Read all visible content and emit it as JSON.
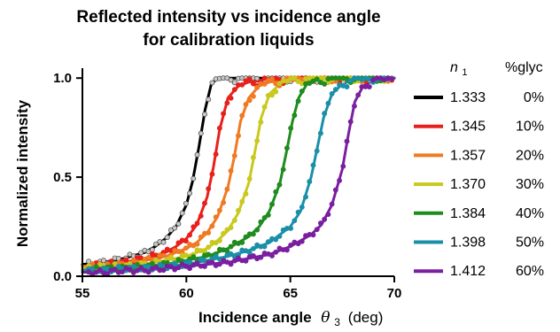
{
  "chart_data": {
    "type": "line",
    "title": [
      "Reflected intensity vs incidence angle",
      "for calibration liquids"
    ],
    "xlabel": {
      "main": "Incidence angle",
      "symbol": "θ",
      "sub": "3",
      "unit": "(deg)"
    },
    "ylabel": "Normalized intensity",
    "xlim": [
      55,
      70
    ],
    "ylim": [
      0,
      1.05
    ],
    "xticks": [
      55,
      60,
      65,
      70
    ],
    "xtick_labels": [
      "55",
      "60",
      "65",
      "70"
    ],
    "yticks": [
      0,
      0.5,
      1
    ],
    "ytick_labels": [
      "0.0",
      "0.5",
      "1.0"
    ],
    "grid": false,
    "legend_position": "right",
    "legend_header": {
      "n_symbol": "n",
      "n_sub": "1",
      "pct": "%glyc"
    },
    "series": [
      {
        "name": "1.333",
        "glycerol": "0%",
        "color": "#000000",
        "marker_fill": "#c8c8c8",
        "marker_edge": "#444444",
        "x": [
          55,
          56,
          57,
          58,
          58.5,
          59,
          59.5,
          60,
          60.3,
          60.6,
          60.9,
          61.2,
          61.5,
          62,
          63,
          64,
          65,
          66,
          67,
          68,
          69,
          70
        ],
        "y": [
          0.06,
          0.07,
          0.09,
          0.12,
          0.15,
          0.19,
          0.25,
          0.36,
          0.48,
          0.65,
          0.84,
          0.97,
          1.0,
          1.0,
          1.0,
          1.0,
          1.0,
          1.0,
          1.0,
          1.0,
          1.0,
          1.0
        ]
      },
      {
        "name": "1.345",
        "glycerol": "10%",
        "color": "#e8201c",
        "x": [
          55,
          56,
          57,
          58,
          59,
          59.5,
          60,
          60.5,
          61,
          61.3,
          61.6,
          62,
          62.5,
          63,
          64,
          65,
          66,
          67,
          68,
          69,
          70
        ],
        "y": [
          0.05,
          0.06,
          0.07,
          0.09,
          0.12,
          0.15,
          0.19,
          0.26,
          0.4,
          0.55,
          0.74,
          0.9,
          0.96,
          0.98,
          0.99,
          1.0,
          1.0,
          1.0,
          1.0,
          1.0,
          1.0
        ]
      },
      {
        "name": "1.357",
        "glycerol": "20%",
        "color": "#f07a22",
        "x": [
          55,
          56,
          57,
          58,
          59,
          60,
          60.5,
          61,
          61.5,
          62,
          62.3,
          62.6,
          63,
          63.5,
          64,
          65,
          66,
          67,
          68,
          69,
          70
        ],
        "y": [
          0.05,
          0.05,
          0.06,
          0.08,
          0.1,
          0.14,
          0.17,
          0.22,
          0.3,
          0.45,
          0.6,
          0.78,
          0.9,
          0.96,
          0.98,
          0.99,
          1.0,
          1.0,
          1.0,
          1.0,
          1.0
        ]
      },
      {
        "name": "1.370",
        "glycerol": "30%",
        "color": "#c8c81e",
        "x": [
          55,
          56,
          57,
          58,
          59,
          60,
          61,
          61.5,
          62,
          62.5,
          63,
          63.3,
          63.6,
          64,
          64.5,
          65,
          66,
          67,
          68,
          69,
          70
        ],
        "y": [
          0.04,
          0.05,
          0.05,
          0.06,
          0.08,
          0.1,
          0.14,
          0.18,
          0.23,
          0.32,
          0.47,
          0.63,
          0.8,
          0.92,
          0.97,
          0.99,
          1.0,
          1.0,
          1.0,
          1.0,
          1.0
        ]
      },
      {
        "name": "1.384",
        "glycerol": "40%",
        "color": "#1e8c1e",
        "x": [
          55,
          56,
          57,
          58,
          59,
          60,
          61,
          62,
          63,
          63.5,
          64,
          64.5,
          64.8,
          65.1,
          65.4,
          65.8,
          66.5,
          67,
          68,
          69,
          70
        ],
        "y": [
          0.03,
          0.04,
          0.04,
          0.05,
          0.06,
          0.08,
          0.1,
          0.14,
          0.2,
          0.25,
          0.33,
          0.47,
          0.62,
          0.78,
          0.9,
          0.97,
          0.99,
          1.0,
          1.0,
          1.0,
          1.0
        ]
      },
      {
        "name": "1.398",
        "glycerol": "50%",
        "color": "#1b8fa8",
        "x": [
          55,
          56,
          57,
          58,
          59,
          60,
          61,
          62,
          63,
          64,
          65,
          65.5,
          66,
          66.3,
          66.6,
          67,
          67.5,
          68,
          69,
          70
        ],
        "y": [
          0.03,
          0.03,
          0.04,
          0.04,
          0.05,
          0.06,
          0.08,
          0.1,
          0.13,
          0.17,
          0.25,
          0.33,
          0.5,
          0.65,
          0.8,
          0.92,
          0.97,
          0.99,
          1.0,
          1.0
        ]
      },
      {
        "name": "1.412",
        "glycerol": "60%",
        "color": "#7a1fa0",
        "x": [
          55,
          56,
          57,
          58,
          59,
          60,
          61,
          62,
          63,
          64,
          65,
          66,
          66.5,
          67,
          67.5,
          67.8,
          68.1,
          68.5,
          69,
          70
        ],
        "y": [
          0.02,
          0.02,
          0.03,
          0.03,
          0.04,
          0.05,
          0.06,
          0.07,
          0.09,
          0.11,
          0.15,
          0.21,
          0.26,
          0.36,
          0.54,
          0.72,
          0.88,
          0.96,
          0.99,
          1.0
        ]
      }
    ]
  }
}
